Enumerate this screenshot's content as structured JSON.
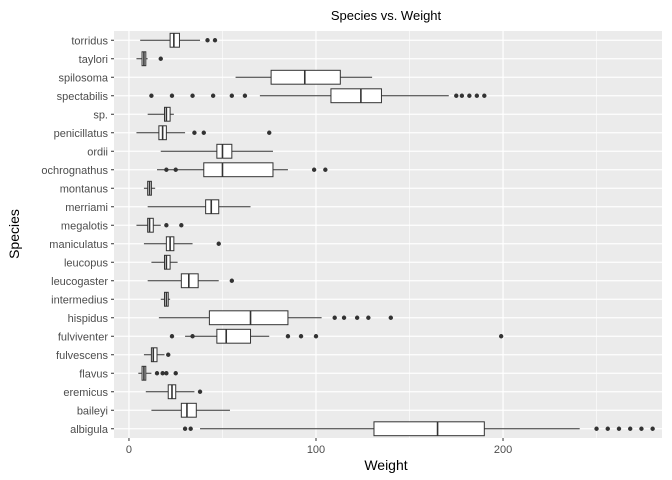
{
  "chart_data": {
    "type": "boxplot",
    "orientation": "horizontal",
    "title": "Species vs. Weight",
    "xlabel": "Weight",
    "ylabel": "Species",
    "xlim": [
      -8,
      285
    ],
    "x_ticks": [
      0,
      100,
      200
    ],
    "grid": true,
    "colors": {
      "panel": "#ebebeb",
      "grid": "#ffffff",
      "box_fill": "#ffffff",
      "box_stroke": "#333333",
      "outlier": "#333333"
    },
    "categories": [
      "albigula",
      "baileyi",
      "eremicus",
      "flavus",
      "fulvescens",
      "fulviventer",
      "hispidus",
      "intermedius",
      "leucogaster",
      "leucopus",
      "maniculatus",
      "megalotis",
      "merriami",
      "montanus",
      "ochrognathus",
      "ordii",
      "penicillatus",
      "sp.",
      "spectabilis",
      "spilosoma",
      "taylori",
      "torridus"
    ],
    "boxes": [
      {
        "species": "albigula",
        "whisker_low": 38,
        "q1": 131,
        "median": 165,
        "q3": 190,
        "whisker_high": 241,
        "outliers": [
          30,
          33,
          250,
          256,
          262,
          268,
          274,
          280
        ]
      },
      {
        "species": "baileyi",
        "whisker_low": 12,
        "q1": 28,
        "median": 31,
        "q3": 36,
        "whisker_high": 54,
        "outliers": []
      },
      {
        "species": "eremicus",
        "whisker_low": 9,
        "q1": 21,
        "median": 23,
        "q3": 25,
        "whisker_high": 35,
        "outliers": [
          38
        ]
      },
      {
        "species": "flavus",
        "whisker_low": 5,
        "q1": 7,
        "median": 8,
        "q3": 9,
        "whisker_high": 12,
        "outliers": [
          15,
          18,
          20,
          25
        ]
      },
      {
        "species": "fulvescens",
        "whisker_low": 8,
        "q1": 12,
        "median": 13,
        "q3": 15,
        "whisker_high": 19,
        "outliers": [
          21
        ]
      },
      {
        "species": "fulviventer",
        "whisker_low": 30,
        "q1": 47,
        "median": 52,
        "q3": 65,
        "whisker_high": 75,
        "outliers": [
          23,
          34,
          85,
          92,
          100,
          199
        ]
      },
      {
        "species": "hispidus",
        "whisker_low": 16,
        "q1": 43,
        "median": 65,
        "q3": 85,
        "whisker_high": 103,
        "outliers": [
          110,
          115,
          122,
          128,
          140
        ]
      },
      {
        "species": "intermedius",
        "whisker_low": 17,
        "q1": 19,
        "median": 20,
        "q3": 21,
        "whisker_high": 22,
        "outliers": []
      },
      {
        "species": "leucogaster",
        "whisker_low": 10,
        "q1": 28,
        "median": 32,
        "q3": 37,
        "whisker_high": 48,
        "outliers": [
          55
        ]
      },
      {
        "species": "leucopus",
        "whisker_low": 12,
        "q1": 19,
        "median": 20,
        "q3": 22,
        "whisker_high": 26,
        "outliers": []
      },
      {
        "species": "maniculatus",
        "whisker_low": 8,
        "q1": 20,
        "median": 22,
        "q3": 24,
        "whisker_high": 34,
        "outliers": [
          48
        ]
      },
      {
        "species": "megalotis",
        "whisker_low": 4,
        "q1": 10,
        "median": 11,
        "q3": 13,
        "whisker_high": 17,
        "outliers": [
          20,
          28
        ]
      },
      {
        "species": "merriami",
        "whisker_low": 10,
        "q1": 41,
        "median": 44,
        "q3": 48,
        "whisker_high": 65,
        "outliers": []
      },
      {
        "species": "montanus",
        "whisker_low": 8,
        "q1": 10,
        "median": 11,
        "q3": 12,
        "whisker_high": 14,
        "outliers": []
      },
      {
        "species": "ochrognathus",
        "whisker_low": 15,
        "q1": 40,
        "median": 50,
        "q3": 77,
        "whisker_high": 85,
        "outliers": [
          20,
          25,
          99,
          105
        ]
      },
      {
        "species": "ordii",
        "whisker_low": 17,
        "q1": 47,
        "median": 50,
        "q3": 55,
        "whisker_high": 77,
        "outliers": []
      },
      {
        "species": "penicillatus",
        "whisker_low": 4,
        "q1": 16,
        "median": 18,
        "q3": 20,
        "whisker_high": 30,
        "outliers": [
          35,
          40,
          75
        ]
      },
      {
        "species": "sp.",
        "whisker_low": 10,
        "q1": 19,
        "median": 20,
        "q3": 22,
        "whisker_high": 24,
        "outliers": []
      },
      {
        "species": "spectabilis",
        "whisker_low": 70,
        "q1": 108,
        "median": 124,
        "q3": 135,
        "whisker_high": 171,
        "outliers": [
          12,
          23,
          34,
          45,
          55,
          62,
          175,
          178,
          182,
          186,
          190
        ]
      },
      {
        "species": "spilosoma",
        "whisker_low": 57,
        "q1": 76,
        "median": 94,
        "q3": 113,
        "whisker_high": 130,
        "outliers": []
      },
      {
        "species": "taylori",
        "whisker_low": 4,
        "q1": 7,
        "median": 8,
        "q3": 9,
        "whisker_high": 10,
        "outliers": [
          17
        ]
      },
      {
        "species": "torridus",
        "whisker_low": 6,
        "q1": 22,
        "median": 24,
        "q3": 27,
        "whisker_high": 38,
        "outliers": [
          42,
          46
        ]
      }
    ]
  }
}
